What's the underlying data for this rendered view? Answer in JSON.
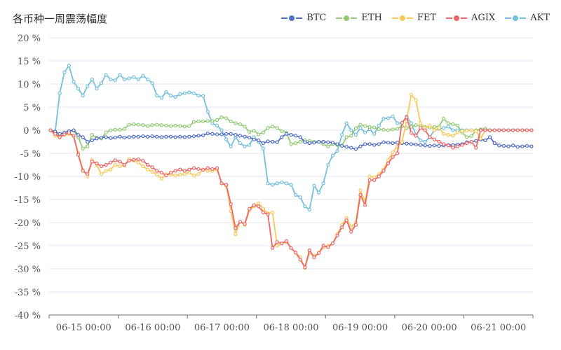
{
  "chart_title": "各币种一周震荡幅度",
  "legend": [
    {
      "name": "BTC",
      "color": "#5470c6"
    },
    {
      "name": "ETH",
      "color": "#91cc75"
    },
    {
      "name": "FET",
      "color": "#fac858"
    },
    {
      "name": "AGIX",
      "color": "#ee6666"
    },
    {
      "name": "AKT",
      "color": "#73c0de"
    }
  ],
  "chart_data": {
    "type": "line",
    "title": "各币种一周震荡幅度",
    "y_unit": "%",
    "ylim": [
      -40,
      20
    ],
    "y_ticks": [
      "20 %",
      "15 %",
      "10 %",
      "5 %",
      "0 %",
      "-5 %",
      "-10 %",
      "-15 %",
      "-20 %",
      "-25 %",
      "-30 %",
      "-35 %",
      "-40 %"
    ],
    "x_ticks": [
      "06-15 00:00",
      "06-16 00:00",
      "06-17 00:00",
      "06-18 00:00",
      "06-19 00:00",
      "06-20 00:00",
      "06-21 00:00"
    ],
    "n_points": 105,
    "grid": true,
    "legend_position": "top-right",
    "series": [
      {
        "name": "BTC",
        "color": "#5470c6",
        "values": [
          0,
          -0.3,
          -0.8,
          -0.5,
          -0.2,
          0,
          -1,
          -1.5,
          -2.5,
          -2.2,
          -1.8,
          -1.6,
          -1.5,
          -1.7,
          -1.6,
          -1.4,
          -1.6,
          -1.5,
          -1.4,
          -1.4,
          -1.3,
          -1.4,
          -1.3,
          -1.4,
          -1.5,
          -1.4,
          -1.4,
          -1.5,
          -1.4,
          -1.5,
          -1.4,
          -1.3,
          -1.2,
          -1.1,
          -0.7,
          -0.8,
          -0.9,
          -0.9,
          -0.8,
          -0.8,
          -1,
          -1.2,
          -1.4,
          -1.6,
          -2,
          -2.2,
          -2.8,
          -2.4,
          -2.5,
          -2.6,
          -1.5,
          -0.8,
          -1,
          -1.2,
          -1.5,
          -2.6,
          -2.8,
          -2.7,
          -2.5,
          -2.5,
          -2.6,
          -2.7,
          -3,
          -3.4,
          -3.6,
          -3.8,
          -4.1,
          -3.5,
          -3,
          -3,
          -3.2,
          -3,
          -2.6,
          -2.7,
          -2.8,
          -2.7,
          -2.8,
          -2.9,
          -3,
          -3.1,
          -3.2,
          -3.3,
          -3.4,
          -3.3,
          -3.4,
          -3.3,
          -3.2,
          -3.2,
          -3.1,
          -3,
          -2.6,
          -2.5,
          -2.3,
          -2,
          -2.2,
          -1.5,
          -2.8,
          -3.3,
          -3.4,
          -3.5,
          -3.3,
          -3.6,
          -3.5,
          -3.4,
          -3.5
        ]
      },
      {
        "name": "ETH",
        "color": "#91cc75",
        "values": [
          0,
          -0.3,
          -1,
          -0.5,
          -0.2,
          -0.1,
          -1.5,
          -4,
          -3.5,
          -1,
          -1.6,
          -1.8,
          -0.5,
          0,
          0.1,
          0.1,
          0.3,
          1.2,
          1.3,
          1.2,
          1.1,
          0.9,
          1.1,
          1.2,
          1.1,
          1,
          0.9,
          1,
          0.9,
          0.8,
          0.9,
          1.8,
          1.9,
          1.9,
          2,
          2,
          2.2,
          2.8,
          2.6,
          1.9,
          1.5,
          1.3,
          0.8,
          -0.4,
          -0.1,
          -0.9,
          -0.5,
          0.5,
          0.8,
          0.5,
          -0.2,
          -0.5,
          -3,
          -2.8,
          -2.5,
          -2.2,
          -2.3,
          -2.5,
          -2.5,
          -3,
          -3.5,
          -3,
          -3.2,
          -3.3,
          -1.5,
          -1.2,
          0.4,
          1.2,
          0.9,
          0.7,
          0.6,
          0.2,
          0.1,
          0,
          0.2,
          0.3,
          0.9,
          0.5,
          0.7,
          1.1,
          0.9,
          0.7,
          0.6,
          0.7,
          0.8,
          2.5,
          1.5,
          1.3,
          1,
          -0.5,
          -1.5,
          -1.3,
          0,
          0.2,
          0.4,
          -0.1,
          0,
          0,
          0,
          0,
          0,
          0,
          0,
          0,
          0
        ]
      },
      {
        "name": "FET",
        "color": "#fac858",
        "values": [
          0,
          -1.2,
          -1.6,
          -1,
          -0.8,
          -1.3,
          -5,
          -8.6,
          -10,
          -6.5,
          -7.5,
          -9.5,
          -8.8,
          -8.5,
          -7.5,
          -7.8,
          -7.6,
          -6.2,
          -6.6,
          -7,
          -7.8,
          -8.5,
          -9,
          -9.6,
          -10.5,
          -9.5,
          -9.6,
          -9.8,
          -9.6,
          -9.5,
          -9.2,
          -9.8,
          -9.5,
          -8.5,
          -8.8,
          -8.8,
          -8.5,
          -11.5,
          -12,
          -17.5,
          -22.5,
          -19.8,
          -20.5,
          -17.4,
          -16.5,
          -15.8,
          -17,
          -18,
          -17.8,
          -25,
          -24.5,
          -24.2,
          -25.5,
          -26.5,
          -27.5,
          -29.8,
          -26.5,
          -27.2,
          -26.5,
          -25.4,
          -25,
          -24.5,
          -22.5,
          -20.5,
          -19,
          -21,
          -20,
          -13,
          -15.5,
          -10,
          -10.2,
          -9.5,
          -8.5,
          -6.5,
          -4.8,
          -3.5,
          -2.5,
          2,
          7.7,
          6.5,
          1.5,
          0.5,
          1,
          0,
          0.5,
          -0.8,
          -1,
          -1.2,
          -0.5,
          -0.2,
          -0.1,
          0,
          -0.2,
          -1.8,
          0,
          0,
          0,
          0,
          0,
          0,
          0,
          0,
          0,
          0,
          0
        ]
      },
      {
        "name": "AGIX",
        "color": "#ee6666",
        "values": [
          0,
          -0.8,
          -1.5,
          -0.9,
          -0.6,
          -1.2,
          -5.3,
          -8.8,
          -9.5,
          -6.8,
          -7.2,
          -7.8,
          -7.5,
          -7,
          -6.5,
          -6.8,
          -7.5,
          -6.6,
          -6.4,
          -6.3,
          -6.6,
          -7.5,
          -8,
          -8.8,
          -9.2,
          -9.8,
          -9.2,
          -8.8,
          -8.5,
          -8.8,
          -8.5,
          -8.2,
          -8.4,
          -8.6,
          -8.2,
          -8.4,
          -8.2,
          -11.5,
          -11.8,
          -16,
          -21.2,
          -19.8,
          -20.3,
          -17,
          -16.2,
          -16.5,
          -17.8,
          -18.2,
          -25.5,
          -24.2,
          -24.5,
          -24,
          -25.5,
          -26.5,
          -28,
          -29.7,
          -26,
          -27.5,
          -26.6,
          -25,
          -25.3,
          -24.5,
          -22.8,
          -21,
          -19.5,
          -22,
          -20.5,
          -14,
          -16.2,
          -10.8,
          -10.8,
          -10,
          -8.8,
          -7.2,
          -5.8,
          -5,
          1.6,
          2.8,
          -0.6,
          -1.2,
          0.5,
          0,
          -1.5,
          -2,
          -2.5,
          -3,
          -3.3,
          -3.8,
          -3.5,
          -3.2,
          -2.8,
          -2.5,
          -3.8,
          0,
          0,
          0,
          0,
          0,
          0,
          0,
          0,
          0,
          0,
          0,
          0
        ]
      },
      {
        "name": "AKT",
        "color": "#73c0de",
        "values": [
          0,
          -0.5,
          8,
          12.5,
          14,
          10.5,
          9,
          7.5,
          9.5,
          11,
          9,
          10.2,
          12,
          11,
          10.8,
          12,
          11,
          11.2,
          11.5,
          11,
          11.8,
          11,
          10.2,
          7.5,
          7,
          8.3,
          7.5,
          7.2,
          7.8,
          8,
          8.2,
          8,
          7.5,
          7.4,
          4,
          1.5,
          1,
          0,
          -2,
          -3.5,
          -1.5,
          -2.8,
          -3.5,
          -3.2,
          -1.5,
          -2.5,
          -4,
          -11.5,
          -11.8,
          -11.5,
          -11.3,
          -11.5,
          -11.8,
          -14,
          -14.5,
          -16.5,
          -17.2,
          -12,
          -13.5,
          -11.5,
          -7.5,
          -5.5,
          -4.5,
          -1,
          1.5,
          0,
          -1,
          0.5,
          -0.5,
          0.2,
          -0.8,
          1,
          2.5,
          2.6,
          3,
          1.5,
          1.6,
          3,
          1.5,
          -1,
          -2.2,
          -2.5,
          -1.5,
          0,
          0.3,
          0.5,
          0.8,
          0,
          0,
          0,
          0,
          0,
          0,
          0,
          0,
          0,
          0,
          0,
          0,
          0,
          0,
          0,
          0,
          0,
          0
        ]
      }
    ]
  }
}
